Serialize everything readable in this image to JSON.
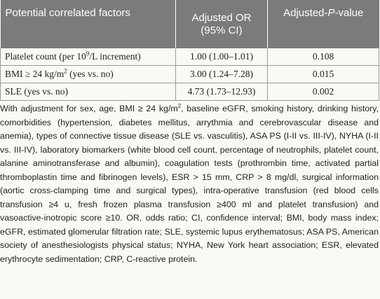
{
  "table": {
    "headers": {
      "factor": "Potential correlated factors",
      "or_line1": "Adjusted OR",
      "or_line2": "(95% CI)",
      "p_prefix": "Adjusted-",
      "p_italic": "P",
      "p_suffix": "-value"
    },
    "rows": [
      {
        "factor_pre": "Platelet count (per 10",
        "factor_sup": "9",
        "factor_post": "/L increment)",
        "or": "1.00 (1.00–1.01)",
        "p": "0.108"
      },
      {
        "factor_pre": "BMI ≥ 24 kg/m",
        "factor_sup": "2",
        "factor_post": " (yes vs. no)",
        "or": "3.00 (1.24–7.28)",
        "p": "0.015"
      },
      {
        "factor_pre": "SLE (yes vs. no)",
        "factor_sup": "",
        "factor_post": "",
        "or": "4.73 (1.73–12.93)",
        "p": "0.002"
      }
    ]
  },
  "footnote": {
    "part1": "With adjustment for sex, age, BMI ≥ 24 kg/m",
    "sup": "2",
    "part2": ", baseline eGFR, smoking history, drinking history, comorbidities (hypertension, diabetes mellitus, arrythmia and cerebrovascular disease and anemia), types of connective tissue disease (SLE vs. vasculitis), ASA PS (I-II vs. III-IV), NYHA (I-II vs. III-IV), laboratory biomarkers (white blood cell count, percentage of neutrophils, platelet count, alanine aminotransferase and albumin), coagulation tests (prothrombin time, activated partial thromboplastin time and fibrinogen levels), ESR > 15 mm, CRP > 8 mg/dl, surgical information (aortic cross-clamping time and surgical types), intra-operative transfusion (red blood cells transfusion ≥4 u, fresh frozen plasma transfusion ≥400 ml and platelet transfusion) and vasoactive-inotropic score ≥10. OR, odds ratio; CI, confidence interval; BMI, body mass index; eGFR, estimated glomerular filtration rate; SLE, systemic lupus erythematosus; ASA PS, American society of anesthesiologists physical status; NYHA, New York heart association; ESR, elevated erythrocyte sedimentation; CRP, C-reactive protein."
  }
}
